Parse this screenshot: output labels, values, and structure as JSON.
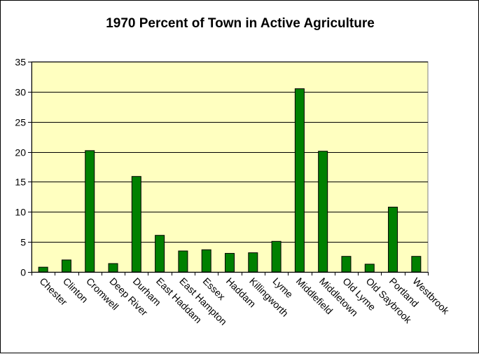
{
  "chart_data": {
    "type": "bar",
    "title": "1970 Percent of Town in Active Agriculture",
    "xlabel": "",
    "ylabel": "",
    "ylim": [
      0,
      35
    ],
    "yticks": [
      0,
      5,
      10,
      15,
      20,
      25,
      30,
      35
    ],
    "grid": true,
    "legend": "none",
    "categories": [
      "Chester",
      "Clinton",
      "Cromwell",
      "Deep River",
      "Durham",
      "East Haddam",
      "East Hampton",
      "Essex",
      "Haddam",
      "Killingworth",
      "Lyme",
      "Middlefield",
      "Middletown",
      "Old Lyme",
      "Old Saybrook",
      "Portland",
      "Westbrook"
    ],
    "values": [
      0.8,
      2.0,
      20.2,
      1.4,
      15.9,
      6.1,
      3.5,
      3.7,
      3.1,
      3.2,
      5.1,
      30.5,
      20.1,
      2.6,
      1.3,
      10.8,
      2.6
    ],
    "colors": {
      "bar_fill": "#008000",
      "bar_stroke": "#000000",
      "plot_background": "#ffffc0",
      "gridline": "#000000"
    }
  }
}
